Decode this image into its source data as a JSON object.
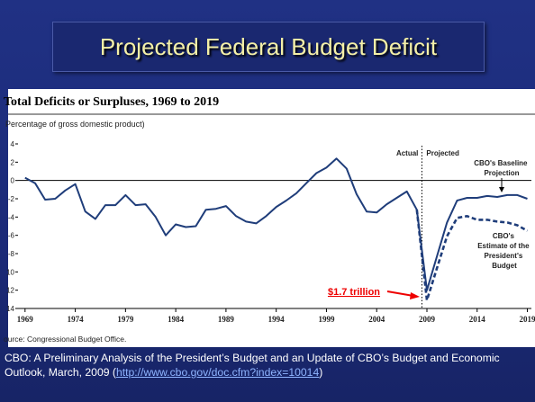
{
  "slide_title": "Projected Federal Budget Deficit",
  "chart_data": {
    "type": "line",
    "title": "Total Deficits or Surpluses, 1969 to 2019",
    "subtitle": "Percentage of gross domestic product)",
    "x": [
      1969,
      1970,
      1971,
      1972,
      1973,
      1974,
      1975,
      1976,
      1977,
      1978,
      1979,
      1980,
      1981,
      1982,
      1983,
      1984,
      1985,
      1986,
      1987,
      1988,
      1989,
      1990,
      1991,
      1992,
      1993,
      1994,
      1995,
      1996,
      1997,
      1998,
      1999,
      2000,
      2001,
      2002,
      2003,
      2004,
      2005,
      2006,
      2007,
      2008,
      2009,
      2010,
      2011,
      2012,
      2013,
      2014,
      2015,
      2016,
      2017,
      2018,
      2019
    ],
    "series": [
      {
        "name": "CBO's Baseline Projection",
        "color": "#1f3d7a",
        "dash": false,
        "values": [
          0.3,
          -0.3,
          -2.1,
          -2.0,
          -1.1,
          -0.4,
          -3.4,
          -4.2,
          -2.7,
          -2.7,
          -1.6,
          -2.7,
          -2.6,
          -4.0,
          -6.0,
          -4.8,
          -5.1,
          -5.0,
          -3.2,
          -3.1,
          -2.8,
          -3.9,
          -4.5,
          -4.7,
          -3.9,
          -2.9,
          -2.2,
          -1.4,
          -0.3,
          0.8,
          1.4,
          2.4,
          1.3,
          -1.5,
          -3.4,
          -3.5,
          -2.6,
          -1.9,
          -1.2,
          -3.2,
          -12.0,
          -8.3,
          -4.6,
          -2.2,
          -1.9,
          -1.9,
          -1.7,
          -1.8,
          -1.6,
          -1.6,
          -2.0
        ]
      },
      {
        "name": "CBO's Estimate of the President's Budget",
        "color": "#1f3d7a",
        "dash": true,
        "values": [
          null,
          null,
          null,
          null,
          null,
          null,
          null,
          null,
          null,
          null,
          null,
          null,
          null,
          null,
          null,
          null,
          null,
          null,
          null,
          null,
          null,
          null,
          null,
          null,
          null,
          null,
          null,
          null,
          null,
          null,
          null,
          null,
          null,
          null,
          null,
          null,
          null,
          null,
          null,
          -3.2,
          -13.1,
          -9.6,
          -6.1,
          -4.1,
          -3.9,
          -4.3,
          -4.3,
          -4.5,
          -4.6,
          -4.9,
          -5.5
        ]
      }
    ],
    "xlim": [
      1968.3,
      2019.4
    ],
    "xticks": [
      1969,
      1974,
      1979,
      1984,
      1989,
      1994,
      1999,
      2004,
      2009,
      2014,
      2019
    ],
    "ylim": [
      -14,
      4
    ],
    "yticks": [
      4,
      2,
      0,
      -2,
      -4,
      -6,
      -8,
      {
        "value": -10,
        "label": "10"
      },
      {
        "value": -12,
        "label": "12"
      },
      {
        "value": -14,
        "label": "14"
      }
    ],
    "divider": 2008.5,
    "annotations": {
      "actual": "Actual",
      "projected": "Projected",
      "callout": "$1.7 trillion"
    },
    "source": "ource:   Congressional Budget Office."
  },
  "footer": {
    "text": "CBO: A Preliminary Analysis of the President’s Budget and an Update of CBO’s Budget and Economic Outlook, March, 2009 (",
    "link": "http://www.cbo.gov/doc.cfm?index=10014",
    "close": ")"
  }
}
